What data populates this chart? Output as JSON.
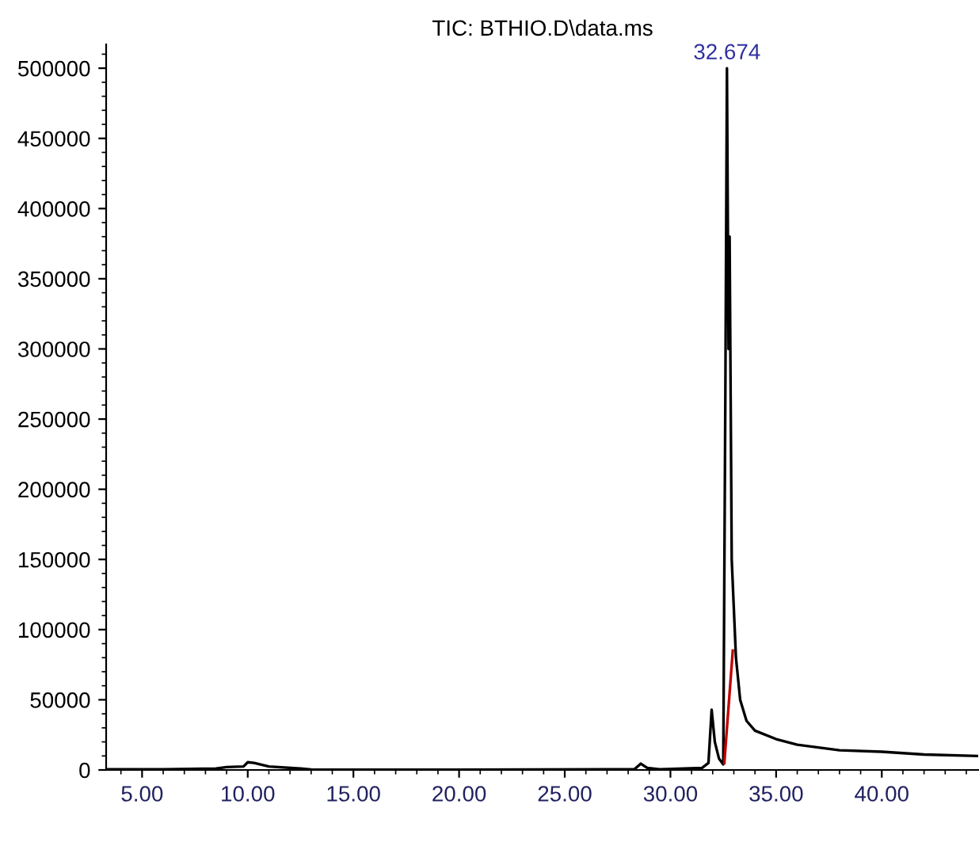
{
  "chart_data": {
    "type": "line",
    "title": "TIC: BTHIO.D\\data.ms",
    "series": [
      {
        "color": "#000000",
        "x": [
          3.3,
          6,
          8.5,
          9.0,
          9.8,
          10.0,
          10.3,
          11.0,
          12.5,
          13.0,
          20.0,
          28.3,
          28.6,
          28.9,
          29.5,
          31.5,
          31.8,
          31.95,
          32.1,
          32.3,
          32.5,
          32.6,
          32.674,
          32.75,
          32.8,
          32.9,
          33.1,
          33.3,
          33.6,
          34.0,
          35.0,
          36.0,
          37.0,
          38.0,
          40.0,
          42.0,
          44.5
        ],
        "values": [
          500,
          500,
          1000,
          2000,
          2500,
          5500,
          5000,
          2500,
          1000,
          300,
          200,
          500,
          4500,
          1500,
          500,
          1500,
          5000,
          43000,
          20000,
          8000,
          4000,
          270000,
          500000,
          300000,
          380000,
          150000,
          80000,
          50000,
          35000,
          28000,
          22000,
          18000,
          16000,
          14000,
          13000,
          11000,
          10000
        ]
      },
      {
        "color": "#c00000",
        "x": [
          32.55,
          32.95
        ],
        "values": [
          5000,
          85000
        ]
      }
    ],
    "annotations": [
      {
        "text": "32.674",
        "x": 32.674,
        "y": 500000
      }
    ],
    "xlim": [
      3.3,
      44.6
    ],
    "ylim": [
      0,
      517000
    ],
    "xticks": [
      {
        "value": 5,
        "label": "5.00"
      },
      {
        "value": 10,
        "label": "10.00"
      },
      {
        "value": 15,
        "label": "15.00"
      },
      {
        "value": 20,
        "label": "20.00"
      },
      {
        "value": 25,
        "label": "25.00"
      },
      {
        "value": 30,
        "label": "30.00"
      },
      {
        "value": 35,
        "label": "35.00"
      },
      {
        "value": 40,
        "label": "40.00"
      }
    ],
    "yticks": [
      0,
      50000,
      100000,
      150000,
      200000,
      250000,
      300000,
      350000,
      400000,
      450000,
      500000
    ],
    "grid": false,
    "legend": false
  }
}
